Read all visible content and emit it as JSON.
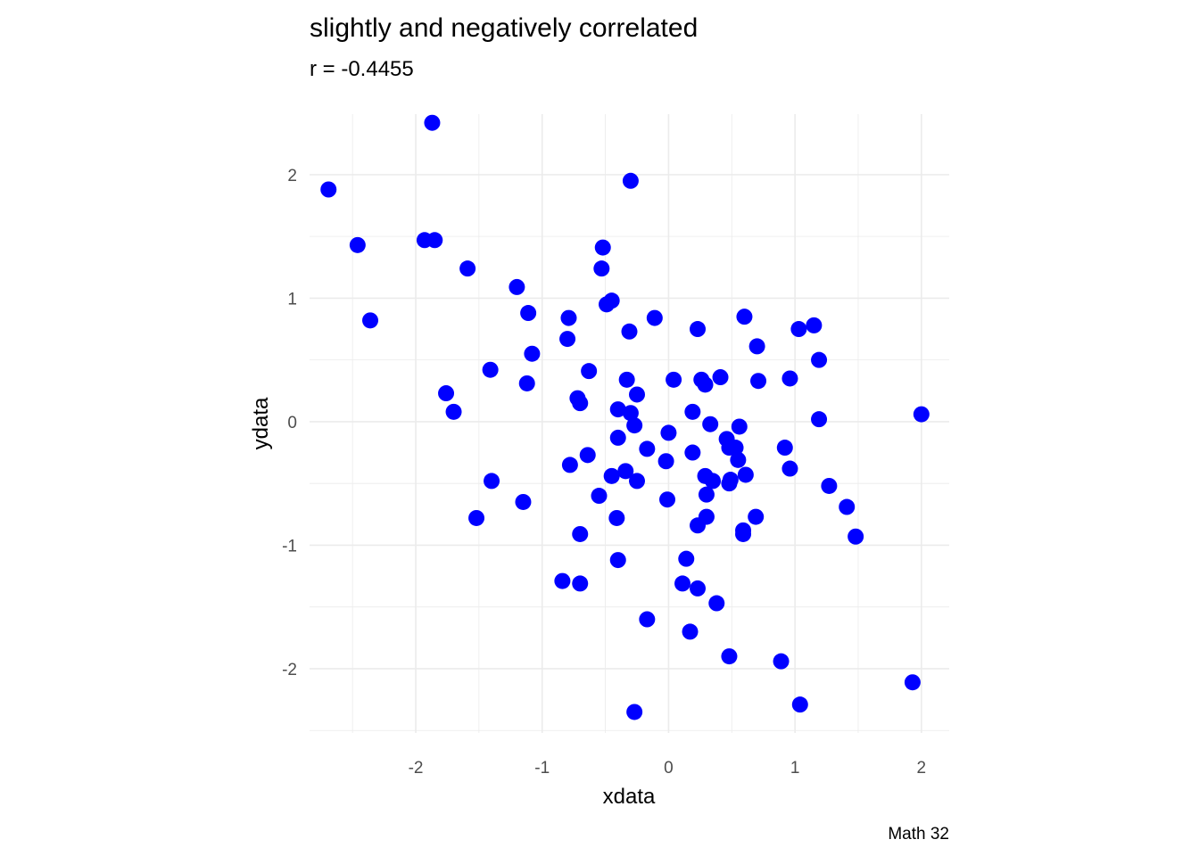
{
  "chart_data": {
    "type": "scatter",
    "title": "slightly and negatively correlated",
    "subtitle": "r = -0.4455",
    "xlabel": "xdata",
    "ylabel": "ydata",
    "caption": "Math 32",
    "xlim": [
      -2.84,
      2.22
    ],
    "ylim": [
      -2.52,
      2.49
    ],
    "x_ticks": [
      -2,
      -1,
      0,
      1,
      2
    ],
    "x_tick_labels": [
      "-2",
      "-1",
      "0",
      "1",
      "2"
    ],
    "y_ticks": [
      -2,
      -1,
      0,
      1,
      2
    ],
    "y_tick_labels": [
      "-2",
      "-1",
      "0",
      "1",
      "2"
    ],
    "grid": true,
    "point_color": "#0000ff",
    "points": [
      [
        -2.69,
        1.88
      ],
      [
        -2.46,
        1.43
      ],
      [
        -2.36,
        0.82
      ],
      [
        -1.93,
        1.47
      ],
      [
        -1.85,
        1.47
      ],
      [
        -1.87,
        2.42
      ],
      [
        -1.59,
        1.24
      ],
      [
        -1.76,
        0.23
      ],
      [
        -1.7,
        0.08
      ],
      [
        -1.41,
        0.42
      ],
      [
        -1.4,
        -0.48
      ],
      [
        -1.52,
        -0.78
      ],
      [
        -1.2,
        1.09
      ],
      [
        -1.11,
        0.88
      ],
      [
        -1.08,
        0.55
      ],
      [
        -1.12,
        0.31
      ],
      [
        -1.15,
        -0.65
      ],
      [
        -0.79,
        0.84
      ],
      [
        -0.8,
        0.67
      ],
      [
        -0.72,
        0.19
      ],
      [
        -0.7,
        0.15
      ],
      [
        -0.78,
        -0.35
      ],
      [
        -0.63,
        0.41
      ],
      [
        -0.64,
        -0.27
      ],
      [
        -0.55,
        -0.6
      ],
      [
        -0.7,
        -0.91
      ],
      [
        -0.84,
        -1.29
      ],
      [
        -0.7,
        -1.31
      ],
      [
        -0.52,
        1.41
      ],
      [
        -0.53,
        1.24
      ],
      [
        -0.49,
        0.95
      ],
      [
        -0.45,
        0.98
      ],
      [
        -0.3,
        1.95
      ],
      [
        -0.31,
        0.73
      ],
      [
        -0.33,
        0.34
      ],
      [
        -0.25,
        0.22
      ],
      [
        -0.4,
        0.1
      ],
      [
        -0.3,
        0.07
      ],
      [
        -0.27,
        -0.03
      ],
      [
        -0.4,
        -0.13
      ],
      [
        -0.45,
        -0.44
      ],
      [
        -0.34,
        -0.4
      ],
      [
        -0.25,
        -0.48
      ],
      [
        -0.41,
        -0.78
      ],
      [
        -0.4,
        -1.12
      ],
      [
        -0.17,
        -0.22
      ],
      [
        -0.11,
        0.84
      ],
      [
        -0.02,
        -0.32
      ],
      [
        0.0,
        -0.09
      ],
      [
        -0.01,
        -0.63
      ],
      [
        -0.17,
        -1.6
      ],
      [
        -0.27,
        -2.35
      ],
      [
        0.04,
        0.34
      ],
      [
        0.23,
        0.75
      ],
      [
        0.26,
        0.34
      ],
      [
        0.29,
        0.3
      ],
      [
        0.41,
        0.36
      ],
      [
        0.19,
        0.08
      ],
      [
        0.33,
        -0.02
      ],
      [
        0.19,
        -0.25
      ],
      [
        0.29,
        -0.44
      ],
      [
        0.35,
        -0.48
      ],
      [
        0.3,
        -0.59
      ],
      [
        0.3,
        -0.77
      ],
      [
        0.23,
        -0.84
      ],
      [
        0.14,
        -1.11
      ],
      [
        0.11,
        -1.31
      ],
      [
        0.23,
        -1.35
      ],
      [
        0.38,
        -1.47
      ],
      [
        0.17,
        -1.7
      ],
      [
        0.48,
        -1.9
      ],
      [
        0.6,
        0.85
      ],
      [
        0.7,
        0.61
      ],
      [
        0.71,
        0.33
      ],
      [
        0.56,
        -0.04
      ],
      [
        0.46,
        -0.14
      ],
      [
        0.48,
        -0.21
      ],
      [
        0.53,
        -0.21
      ],
      [
        0.55,
        -0.31
      ],
      [
        0.61,
        -0.43
      ],
      [
        0.48,
        -0.5
      ],
      [
        0.49,
        -0.47
      ],
      [
        0.69,
        -0.77
      ],
      [
        0.59,
        -0.88
      ],
      [
        0.59,
        -0.91
      ],
      [
        0.89,
        -1.94
      ],
      [
        1.03,
        0.75
      ],
      [
        1.15,
        0.78
      ],
      [
        1.19,
        0.5
      ],
      [
        0.96,
        0.35
      ],
      [
        1.19,
        0.02
      ],
      [
        0.92,
        -0.21
      ],
      [
        0.96,
        -0.38
      ],
      [
        1.27,
        -0.52
      ],
      [
        1.41,
        -0.69
      ],
      [
        1.48,
        -0.93
      ],
      [
        1.04,
        -2.29
      ],
      [
        1.93,
        -2.11
      ],
      [
        2.0,
        0.06
      ]
    ]
  }
}
